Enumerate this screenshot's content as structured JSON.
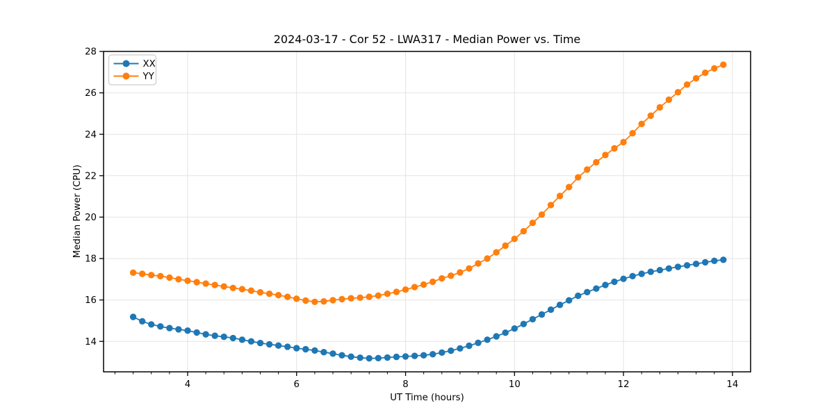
{
  "chart_data": {
    "type": "line",
    "title": "2024-03-17 - Cor 52 - LWA317 - Median Power vs. Time",
    "xlabel": "UT Time (hours)",
    "ylabel": "Median Power (CPU)",
    "xlim": [
      2.457,
      14.333
    ],
    "ylim": [
      12.53,
      28.0
    ],
    "xticks": [
      4,
      6,
      8,
      10,
      12,
      14
    ],
    "xtick_labels": [
      "4",
      "6",
      "8",
      "10",
      "12",
      "14"
    ],
    "x_minor_tick_step_hours": 0.3333,
    "yticks": [
      14,
      16,
      18,
      20,
      22,
      24,
      26,
      28
    ],
    "ytick_labels": [
      "14",
      "16",
      "18",
      "20",
      "22",
      "24",
      "26",
      "28"
    ],
    "grid": true,
    "grid_color": "#e4e4e4",
    "legend_position": "upper-left",
    "marker": "circle",
    "x": [
      3.0,
      3.167,
      3.333,
      3.5,
      3.667,
      3.833,
      4.0,
      4.167,
      4.333,
      4.5,
      4.667,
      4.833,
      5.0,
      5.167,
      5.333,
      5.5,
      5.667,
      5.833,
      6.0,
      6.167,
      6.333,
      6.5,
      6.667,
      6.833,
      7.0,
      7.167,
      7.333,
      7.5,
      7.667,
      7.833,
      8.0,
      8.167,
      8.333,
      8.5,
      8.667,
      8.833,
      9.0,
      9.167,
      9.333,
      9.5,
      9.667,
      9.833,
      10.0,
      10.167,
      10.333,
      10.5,
      10.667,
      10.833,
      11.0,
      11.167,
      11.333,
      11.5,
      11.667,
      11.833,
      12.0,
      12.167,
      12.333,
      12.5,
      12.667,
      12.833,
      13.0,
      13.167,
      13.333,
      13.5,
      13.667,
      13.833
    ],
    "series": [
      {
        "name": "XX",
        "color": "#1f77b4",
        "values": [
          15.18,
          14.97,
          14.82,
          14.72,
          14.64,
          14.58,
          14.52,
          14.43,
          14.34,
          14.27,
          14.22,
          14.16,
          14.08,
          14.0,
          13.92,
          13.86,
          13.8,
          13.74,
          13.67,
          13.62,
          13.56,
          13.48,
          13.41,
          13.33,
          13.26,
          13.21,
          13.18,
          13.19,
          13.22,
          13.25,
          13.27,
          13.3,
          13.33,
          13.38,
          13.46,
          13.55,
          13.66,
          13.79,
          13.93,
          14.08,
          14.24,
          14.42,
          14.62,
          14.84,
          15.07,
          15.3,
          15.53,
          15.76,
          15.98,
          16.2,
          16.38,
          16.55,
          16.72,
          16.88,
          17.02,
          17.15,
          17.26,
          17.36,
          17.44,
          17.52,
          17.6,
          17.67,
          17.74,
          17.82,
          17.89,
          17.94
        ]
      },
      {
        "name": "YY",
        "color": "#ff7f0e",
        "values": [
          17.32,
          17.26,
          17.2,
          17.15,
          17.08,
          17.0,
          16.93,
          16.86,
          16.79,
          16.72,
          16.65,
          16.58,
          16.52,
          16.45,
          16.37,
          16.3,
          16.23,
          16.15,
          16.06,
          15.97,
          15.91,
          15.93,
          15.99,
          16.04,
          16.08,
          16.11,
          16.15,
          16.21,
          16.3,
          16.39,
          16.5,
          16.62,
          16.74,
          16.88,
          17.04,
          17.17,
          17.33,
          17.52,
          17.76,
          18.0,
          18.3,
          18.62,
          18.95,
          19.32,
          19.72,
          20.12,
          20.58,
          21.02,
          21.45,
          21.92,
          22.3,
          22.65,
          23.0,
          23.32,
          23.62,
          24.05,
          24.5,
          24.9,
          25.3,
          25.67,
          26.03,
          26.4,
          26.7,
          26.97,
          27.18,
          27.36
        ]
      }
    ]
  }
}
